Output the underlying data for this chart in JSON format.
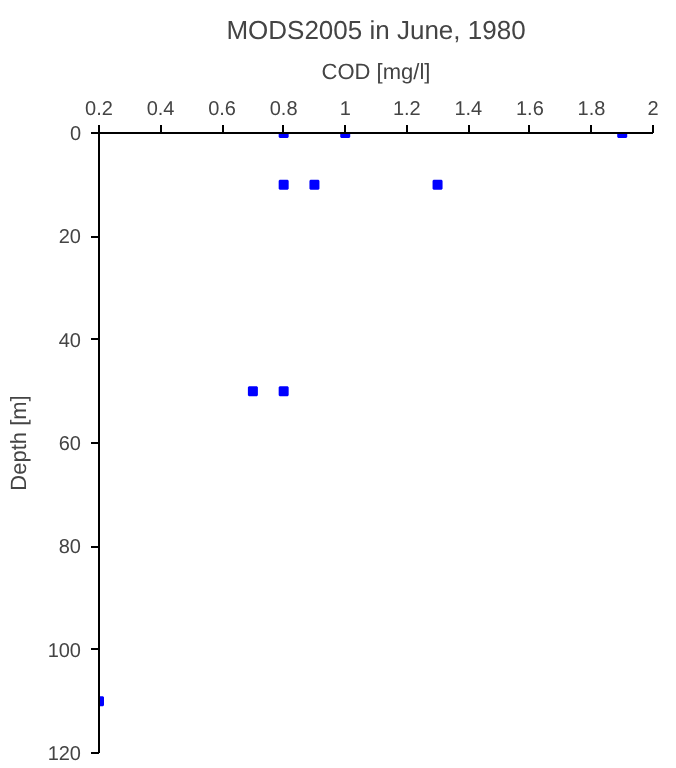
{
  "chart_data": {
    "type": "scatter",
    "title": "MODS2005 in June, 1980",
    "xlabel": "COD [mg/l]",
    "ylabel": "Depth [m]",
    "x": [
      0.8,
      1.0,
      1.9,
      0.8,
      0.9,
      1.3,
      0.7,
      0.8,
      0.2
    ],
    "series": [
      {
        "color": "#0000ff",
        "values": [
          0,
          0,
          0,
          10,
          10,
          10,
          50,
          50,
          110
        ]
      }
    ],
    "xlim": [
      0.2,
      2
    ],
    "xticks": [
      0.2,
      0.4,
      0.6,
      0.8,
      1,
      1.2,
      1.4,
      1.6,
      1.8,
      2
    ],
    "ylim": [
      120,
      0
    ],
    "yticks": [
      0,
      20,
      40,
      60,
      80,
      100,
      120
    ],
    "marker": "square"
  }
}
